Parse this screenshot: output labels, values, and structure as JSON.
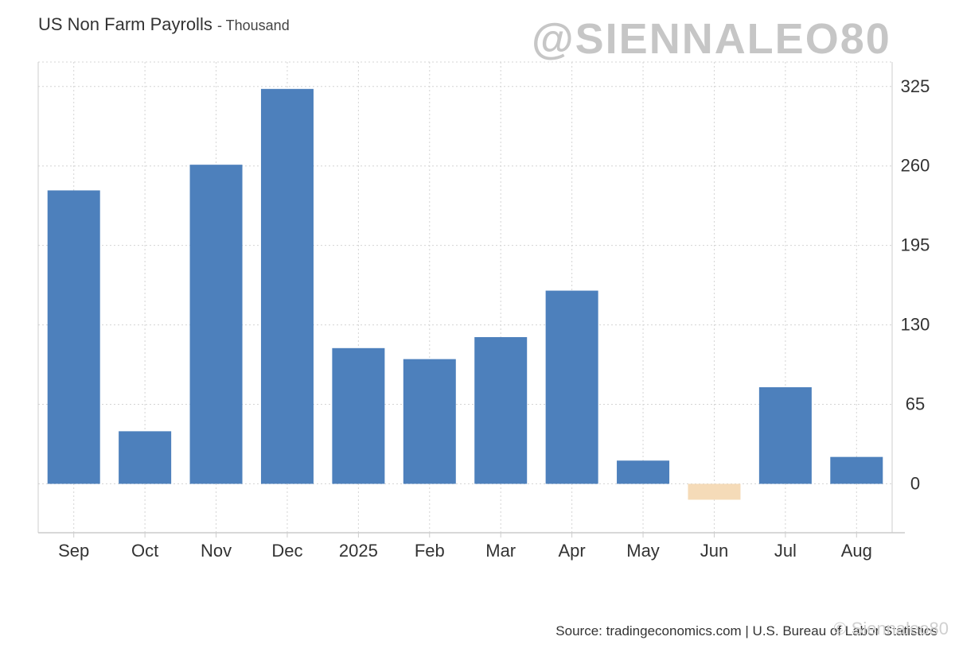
{
  "chart_data": {
    "type": "bar",
    "title": "US Non Farm Payrolls",
    "unit": "Thousand",
    "categories": [
      "Sep",
      "Oct",
      "Nov",
      "Dec",
      "2025",
      "Feb",
      "Mar",
      "Apr",
      "May",
      "Jun",
      "Jul",
      "Aug"
    ],
    "values": [
      240,
      43,
      261,
      323,
      111,
      102,
      120,
      158,
      19,
      -13,
      79,
      22
    ],
    "yticks": [
      0,
      65,
      130,
      195,
      260,
      325
    ],
    "ylim": [
      -40,
      345
    ],
    "y_axis_side": "right",
    "grid": true,
    "colors": {
      "positive": "#4d80bc",
      "negative": "#f5dbb8"
    }
  },
  "watermark": "@SIENNALEO80",
  "source": "Source: tradingeconomics.com | U.S. Bureau of Labor Statistics",
  "source_mark": "© Siennaleo80"
}
